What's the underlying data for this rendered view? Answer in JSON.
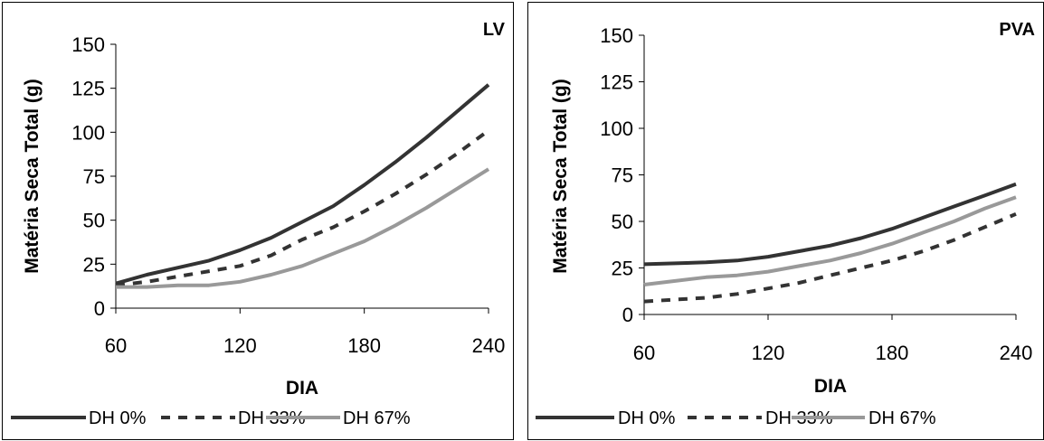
{
  "chart_data": [
    {
      "type": "line",
      "title": "LV",
      "xlabel": "DIA",
      "ylabel": "Matéria Seca Total (g)",
      "xlim": [
        60,
        240
      ],
      "ylim": [
        0,
        150
      ],
      "xticks": [
        60,
        120,
        180,
        240
      ],
      "yticks": [
        0,
        25,
        50,
        75,
        100,
        125,
        150
      ],
      "grid": false,
      "legend_position": "bottom",
      "series": [
        {
          "name": "DH 0%",
          "style": "solid",
          "color": "#333333",
          "x": [
            60,
            75,
            90,
            105,
            120,
            135,
            150,
            165,
            180,
            195,
            210,
            225,
            240
          ],
          "y": [
            14,
            19,
            23,
            27,
            33,
            40,
            49,
            58,
            70,
            83,
            97,
            112,
            127
          ]
        },
        {
          "name": "DH 33%",
          "style": "dashed",
          "color": "#333333",
          "x": [
            60,
            75,
            90,
            105,
            120,
            135,
            150,
            165,
            180,
            195,
            210,
            225,
            240
          ],
          "y": [
            13,
            15,
            18,
            21,
            24,
            30,
            39,
            46,
            55,
            65,
            76,
            88,
            101
          ]
        },
        {
          "name": "DH 67%",
          "style": "solid",
          "color": "#999999",
          "x": [
            60,
            75,
            90,
            105,
            120,
            135,
            150,
            165,
            180,
            195,
            210,
            225,
            240
          ],
          "y": [
            12,
            12,
            13,
            13,
            15,
            19,
            24,
            31,
            38,
            47,
            57,
            68,
            79
          ]
        }
      ]
    },
    {
      "type": "line",
      "title": "PVA",
      "xlabel": "DIA",
      "ylabel": "Matéria Seca Total (g)",
      "xlim": [
        60,
        240
      ],
      "ylim": [
        0,
        150
      ],
      "xticks": [
        60,
        120,
        180,
        240
      ],
      "yticks": [
        0,
        25,
        50,
        75,
        100,
        125,
        150
      ],
      "grid": false,
      "legend_position": "bottom",
      "series": [
        {
          "name": "DH 0%",
          "style": "solid",
          "color": "#333333",
          "x": [
            60,
            75,
            90,
            105,
            120,
            135,
            150,
            165,
            180,
            195,
            210,
            225,
            240
          ],
          "y": [
            27,
            27.5,
            28,
            29,
            31,
            34,
            37,
            41,
            46,
            52,
            58,
            64,
            70
          ]
        },
        {
          "name": "DH 33%",
          "style": "dashed",
          "color": "#333333",
          "x": [
            60,
            75,
            90,
            105,
            120,
            135,
            150,
            165,
            180,
            195,
            210,
            225,
            240
          ],
          "y": [
            7,
            8,
            9,
            11,
            14,
            17,
            21,
            25,
            29,
            34,
            40,
            47,
            54
          ]
        },
        {
          "name": "DH 67%",
          "style": "solid",
          "color": "#999999",
          "x": [
            60,
            75,
            90,
            105,
            120,
            135,
            150,
            165,
            180,
            195,
            210,
            225,
            240
          ],
          "y": [
            16,
            18,
            20,
            21,
            23,
            26,
            29,
            33,
            38,
            44,
            50,
            57,
            63
          ]
        }
      ]
    }
  ]
}
